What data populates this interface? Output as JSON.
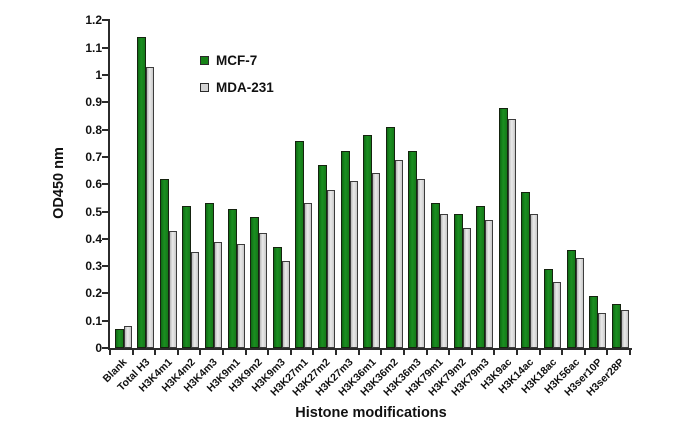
{
  "figure": {
    "background": "#ffffff",
    "accent_green": "#178217",
    "accent_gray": "#d3d3d3"
  },
  "chart_data": {
    "type": "bar",
    "title": "",
    "xlabel": "Histone modifications",
    "ylabel": "OD450 nm",
    "ylim": [
      0,
      1.2
    ],
    "ytick_step": 0.1,
    "ytick_labels": [
      "0",
      "0.1",
      "0.2",
      "0.3",
      "0.4",
      "0.5",
      "0.6",
      "0.7",
      "0.8",
      "0.9",
      "1",
      "1.1",
      "1.2"
    ],
    "grid": false,
    "legend_position": "inside-upper-left",
    "categories": [
      "Blank",
      "Total H3",
      "H3K4m1",
      "H3K4m2",
      "H3K4m3",
      "H3K9m1",
      "H3K9m2",
      "H3K9m3",
      "H3K27m1",
      "H3K27m2",
      "H3K27m3",
      "H3K36m1",
      "H3K36m2",
      "H3K36m3",
      "H3K79m1",
      "H3K79m2",
      "H3K79m3",
      "H3K9ac",
      "H3K14ac",
      "H3K18ac",
      "H3K56ac",
      "H3ser10P",
      "H3ser28P"
    ],
    "series": [
      {
        "name": "MCF-7",
        "color": "#178217",
        "values": [
          0.07,
          1.14,
          0.62,
          0.52,
          0.53,
          0.51,
          0.48,
          0.37,
          0.76,
          0.67,
          0.72,
          0.78,
          0.81,
          0.72,
          0.53,
          0.49,
          0.52,
          0.88,
          0.57,
          0.29,
          0.36,
          0.19,
          0.16
        ]
      },
      {
        "name": "MDA-231",
        "color": "#d3d3d3",
        "values": [
          0.08,
          1.03,
          0.43,
          0.35,
          0.39,
          0.38,
          0.42,
          0.32,
          0.53,
          0.58,
          0.61,
          0.64,
          0.69,
          0.62,
          0.49,
          0.44,
          0.47,
          0.84,
          0.49,
          0.24,
          0.33,
          0.13,
          0.14
        ]
      }
    ]
  }
}
